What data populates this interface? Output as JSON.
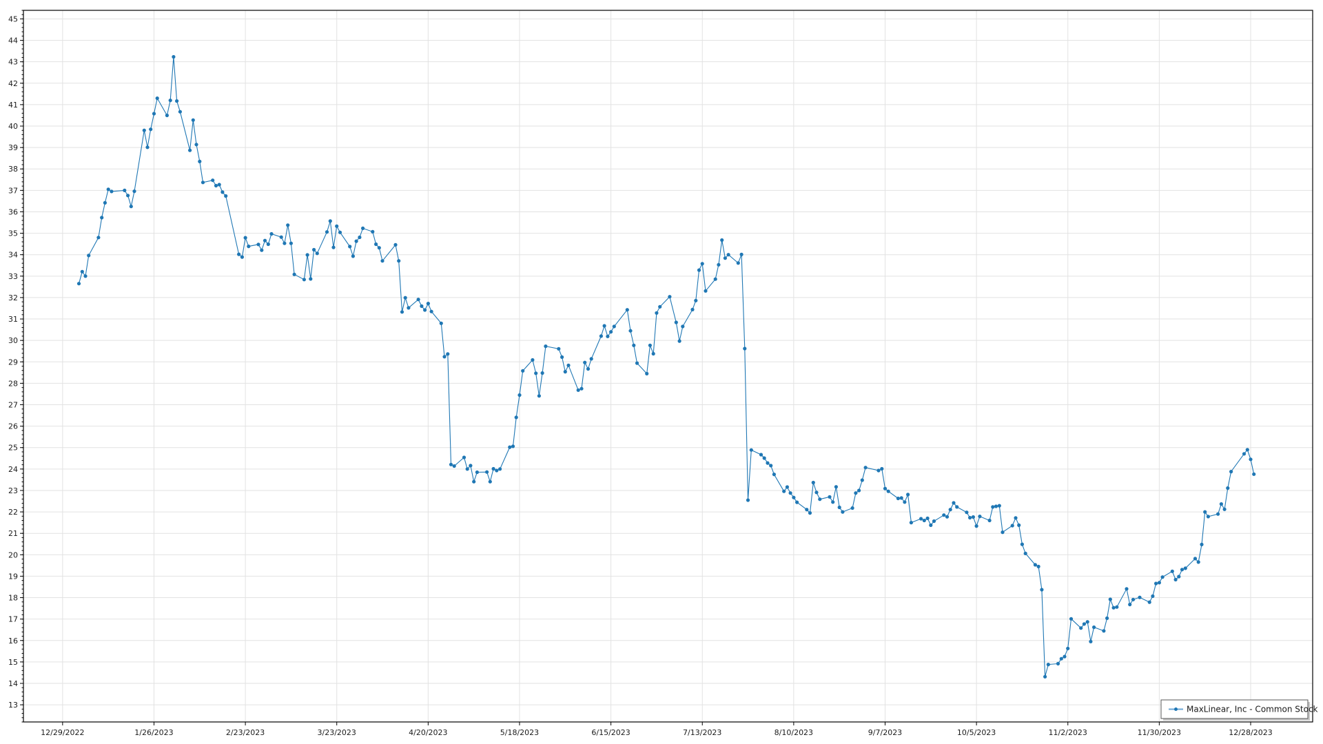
{
  "chart_data": {
    "type": "line",
    "title": "",
    "xlabel": "",
    "ylabel": "",
    "xlim": [
      "2022-12-17",
      "2024-01-16"
    ],
    "ylim": [
      12.2,
      45.4
    ],
    "grid": true,
    "legend_position": "bottom-right",
    "x_tick_labels": [
      "12/29/2022",
      "1/26/2023",
      "2/23/2023",
      "3/23/2023",
      "4/20/2023",
      "5/18/2023",
      "6/15/2023",
      "7/13/2023",
      "8/10/2023",
      "9/7/2023",
      "10/5/2023",
      "11/2/2023",
      "11/30/2023",
      "12/28/2023"
    ],
    "x_tick_dates": [
      "2022-12-29",
      "2023-01-26",
      "2023-02-23",
      "2023-03-23",
      "2023-04-20",
      "2023-05-18",
      "2023-06-15",
      "2023-07-13",
      "2023-08-10",
      "2023-09-07",
      "2023-10-05",
      "2023-11-02",
      "2023-11-30",
      "2023-12-28"
    ],
    "y_tick_labels": [
      "13",
      "14",
      "15",
      "16",
      "17",
      "18",
      "19",
      "20",
      "21",
      "22",
      "23",
      "24",
      "25",
      "26",
      "27",
      "28",
      "29",
      "30",
      "31",
      "32",
      "33",
      "34",
      "35",
      "36",
      "37",
      "38",
      "39",
      "40",
      "41",
      "42",
      "43",
      "44",
      "45"
    ],
    "series": [
      {
        "name": "MaxLinear, Inc - Common Stock",
        "color": "#1f77b4",
        "marker": "circle",
        "points": [
          [
            "2023-01-03",
            32.65
          ],
          [
            "2023-01-04",
            33.21
          ],
          [
            "2023-01-05",
            33.0
          ],
          [
            "2023-01-06",
            33.96
          ],
          [
            "2023-01-09",
            34.8
          ],
          [
            "2023-01-10",
            35.73
          ],
          [
            "2023-01-11",
            36.42
          ],
          [
            "2023-01-12",
            37.05
          ],
          [
            "2023-01-13",
            36.95
          ],
          [
            "2023-01-17",
            37.0
          ],
          [
            "2023-01-18",
            36.76
          ],
          [
            "2023-01-19",
            36.25
          ],
          [
            "2023-01-20",
            36.96
          ],
          [
            "2023-01-23",
            39.8
          ],
          [
            "2023-01-24",
            39.01
          ],
          [
            "2023-01-25",
            39.85
          ],
          [
            "2023-01-26",
            40.58
          ],
          [
            "2023-01-27",
            41.3
          ],
          [
            "2023-01-30",
            40.5
          ],
          [
            "2023-01-31",
            41.2
          ],
          [
            "2023-02-01",
            43.23
          ],
          [
            "2023-02-02",
            41.17
          ],
          [
            "2023-02-03",
            40.67
          ],
          [
            "2023-02-06",
            38.87
          ],
          [
            "2023-02-07",
            40.28
          ],
          [
            "2023-02-08",
            39.14
          ],
          [
            "2023-02-09",
            38.35
          ],
          [
            "2023-02-10",
            37.37
          ],
          [
            "2023-02-13",
            37.47
          ],
          [
            "2023-02-14",
            37.22
          ],
          [
            "2023-02-15",
            37.27
          ],
          [
            "2023-02-16",
            36.92
          ],
          [
            "2023-02-17",
            36.74
          ],
          [
            "2023-02-21",
            34.02
          ],
          [
            "2023-02-22",
            33.89
          ],
          [
            "2023-02-23",
            34.79
          ],
          [
            "2023-02-24",
            34.39
          ],
          [
            "2023-02-27",
            34.48
          ],
          [
            "2023-02-28",
            34.21
          ],
          [
            "2023-03-01",
            34.66
          ],
          [
            "2023-03-02",
            34.49
          ],
          [
            "2023-03-03",
            34.97
          ],
          [
            "2023-03-06",
            34.82
          ],
          [
            "2023-03-07",
            34.53
          ],
          [
            "2023-03-08",
            35.38
          ],
          [
            "2023-03-09",
            34.53
          ],
          [
            "2023-03-10",
            33.08
          ],
          [
            "2023-03-13",
            32.84
          ],
          [
            "2023-03-14",
            33.99
          ],
          [
            "2023-03-15",
            32.87
          ],
          [
            "2023-03-16",
            34.23
          ],
          [
            "2023-03-17",
            34.06
          ],
          [
            "2023-03-20",
            35.06
          ],
          [
            "2023-03-21",
            35.57
          ],
          [
            "2023-03-22",
            34.34
          ],
          [
            "2023-03-23",
            35.33
          ],
          [
            "2023-03-24",
            35.04
          ],
          [
            "2023-03-27",
            34.38
          ],
          [
            "2023-03-28",
            33.93
          ],
          [
            "2023-03-29",
            34.63
          ],
          [
            "2023-03-30",
            34.81
          ],
          [
            "2023-03-31",
            35.23
          ],
          [
            "2023-04-03",
            35.07
          ],
          [
            "2023-04-04",
            34.49
          ],
          [
            "2023-04-05",
            34.32
          ],
          [
            "2023-04-06",
            33.71
          ],
          [
            "2023-04-10",
            34.46
          ],
          [
            "2023-04-11",
            33.71
          ],
          [
            "2023-04-12",
            31.33
          ],
          [
            "2023-04-13",
            31.99
          ],
          [
            "2023-04-14",
            31.52
          ],
          [
            "2023-04-17",
            31.91
          ],
          [
            "2023-04-18",
            31.6
          ],
          [
            "2023-04-19",
            31.42
          ],
          [
            "2023-04-20",
            31.72
          ],
          [
            "2023-04-21",
            31.35
          ],
          [
            "2023-04-24",
            30.8
          ],
          [
            "2023-04-25",
            29.24
          ],
          [
            "2023-04-26",
            29.37
          ],
          [
            "2023-04-27",
            24.21
          ],
          [
            "2023-04-28",
            24.14
          ],
          [
            "2023-05-01",
            24.54
          ],
          [
            "2023-05-02",
            24.0
          ],
          [
            "2023-05-03",
            24.16
          ],
          [
            "2023-05-04",
            23.41
          ],
          [
            "2023-05-05",
            23.85
          ],
          [
            "2023-05-08",
            23.86
          ],
          [
            "2023-05-09",
            23.41
          ],
          [
            "2023-05-10",
            24.01
          ],
          [
            "2023-05-11",
            23.93
          ],
          [
            "2023-05-12",
            24.0
          ],
          [
            "2023-05-15",
            25.02
          ],
          [
            "2023-05-16",
            25.06
          ],
          [
            "2023-05-17",
            26.41
          ],
          [
            "2023-05-18",
            27.45
          ],
          [
            "2023-05-19",
            28.58
          ],
          [
            "2023-05-22",
            29.09
          ],
          [
            "2023-05-23",
            28.47
          ],
          [
            "2023-05-24",
            27.41
          ],
          [
            "2023-05-25",
            28.48
          ],
          [
            "2023-05-26",
            29.73
          ],
          [
            "2023-05-30",
            29.61
          ],
          [
            "2023-05-31",
            29.22
          ],
          [
            "2023-06-01",
            28.54
          ],
          [
            "2023-06-02",
            28.84
          ],
          [
            "2023-06-05",
            27.68
          ],
          [
            "2023-06-06",
            27.75
          ],
          [
            "2023-06-07",
            28.97
          ],
          [
            "2023-06-08",
            28.67
          ],
          [
            "2023-06-09",
            29.14
          ],
          [
            "2023-06-12",
            30.2
          ],
          [
            "2023-06-13",
            30.68
          ],
          [
            "2023-06-14",
            30.19
          ],
          [
            "2023-06-15",
            30.4
          ],
          [
            "2023-06-16",
            30.65
          ],
          [
            "2023-06-20",
            31.43
          ],
          [
            "2023-06-21",
            30.45
          ],
          [
            "2023-06-22",
            29.77
          ],
          [
            "2023-06-23",
            28.94
          ],
          [
            "2023-06-26",
            28.45
          ],
          [
            "2023-06-27",
            29.77
          ],
          [
            "2023-06-28",
            29.38
          ],
          [
            "2023-06-29",
            31.28
          ],
          [
            "2023-06-30",
            31.57
          ],
          [
            "2023-07-03",
            32.04
          ],
          [
            "2023-07-05",
            30.84
          ],
          [
            "2023-07-06",
            29.97
          ],
          [
            "2023-07-07",
            30.65
          ],
          [
            "2023-07-10",
            31.44
          ],
          [
            "2023-07-11",
            31.86
          ],
          [
            "2023-07-12",
            33.28
          ],
          [
            "2023-07-13",
            33.58
          ],
          [
            "2023-07-14",
            32.31
          ],
          [
            "2023-07-17",
            32.86
          ],
          [
            "2023-07-18",
            33.53
          ],
          [
            "2023-07-19",
            34.68
          ],
          [
            "2023-07-20",
            33.84
          ],
          [
            "2023-07-21",
            34.0
          ],
          [
            "2023-07-24",
            33.61
          ],
          [
            "2023-07-25",
            34.01
          ],
          [
            "2023-07-26",
            29.62
          ],
          [
            "2023-07-27",
            22.55
          ],
          [
            "2023-07-28",
            24.89
          ],
          [
            "2023-07-31",
            24.67
          ],
          [
            "2023-08-01",
            24.51
          ],
          [
            "2023-08-02",
            24.28
          ],
          [
            "2023-08-03",
            24.16
          ],
          [
            "2023-08-04",
            23.75
          ],
          [
            "2023-08-07",
            22.96
          ],
          [
            "2023-08-08",
            23.16
          ],
          [
            "2023-08-09",
            22.88
          ],
          [
            "2023-08-10",
            22.67
          ],
          [
            "2023-08-11",
            22.45
          ],
          [
            "2023-08-14",
            22.11
          ],
          [
            "2023-08-15",
            21.95
          ],
          [
            "2023-08-16",
            23.37
          ],
          [
            "2023-08-17",
            22.91
          ],
          [
            "2023-08-18",
            22.59
          ],
          [
            "2023-08-21",
            22.7
          ],
          [
            "2023-08-22",
            22.46
          ],
          [
            "2023-08-23",
            23.17
          ],
          [
            "2023-08-24",
            22.21
          ],
          [
            "2023-08-25",
            22.0
          ],
          [
            "2023-08-28",
            22.18
          ],
          [
            "2023-08-29",
            22.88
          ],
          [
            "2023-08-30",
            23.0
          ],
          [
            "2023-08-31",
            23.48
          ],
          [
            "2023-09-01",
            24.07
          ],
          [
            "2023-09-05",
            23.93
          ],
          [
            "2023-09-06",
            24.01
          ],
          [
            "2023-09-07",
            23.09
          ],
          [
            "2023-09-08",
            22.96
          ],
          [
            "2023-09-11",
            22.63
          ],
          [
            "2023-09-12",
            22.65
          ],
          [
            "2023-09-13",
            22.46
          ],
          [
            "2023-09-14",
            22.81
          ],
          [
            "2023-09-15",
            21.5
          ],
          [
            "2023-09-18",
            21.68
          ],
          [
            "2023-09-19",
            21.6
          ],
          [
            "2023-09-20",
            21.7
          ],
          [
            "2023-09-21",
            21.38
          ],
          [
            "2023-09-22",
            21.57
          ],
          [
            "2023-09-25",
            21.85
          ],
          [
            "2023-09-26",
            21.77
          ],
          [
            "2023-09-27",
            22.11
          ],
          [
            "2023-09-28",
            22.42
          ],
          [
            "2023-09-29",
            22.23
          ],
          [
            "2023-10-02",
            21.98
          ],
          [
            "2023-10-03",
            21.73
          ],
          [
            "2023-10-04",
            21.76
          ],
          [
            "2023-10-05",
            21.34
          ],
          [
            "2023-10-06",
            21.79
          ],
          [
            "2023-10-09",
            21.6
          ],
          [
            "2023-10-10",
            22.23
          ],
          [
            "2023-10-11",
            22.26
          ],
          [
            "2023-10-12",
            22.29
          ],
          [
            "2023-10-13",
            21.05
          ],
          [
            "2023-10-16",
            21.36
          ],
          [
            "2023-10-17",
            21.72
          ],
          [
            "2023-10-18",
            21.38
          ],
          [
            "2023-10-19",
            20.49
          ],
          [
            "2023-10-20",
            20.06
          ],
          [
            "2023-10-23",
            19.53
          ],
          [
            "2023-10-24",
            19.45
          ],
          [
            "2023-10-25",
            18.37
          ],
          [
            "2023-10-26",
            14.31
          ],
          [
            "2023-10-27",
            14.88
          ],
          [
            "2023-10-30",
            14.92
          ],
          [
            "2023-10-31",
            15.15
          ],
          [
            "2023-11-01",
            15.25
          ],
          [
            "2023-11-02",
            15.63
          ],
          [
            "2023-11-03",
            17.01
          ],
          [
            "2023-11-06",
            16.58
          ],
          [
            "2023-11-07",
            16.77
          ],
          [
            "2023-11-08",
            16.87
          ],
          [
            "2023-11-09",
            15.95
          ],
          [
            "2023-11-10",
            16.62
          ],
          [
            "2023-11-13",
            16.45
          ],
          [
            "2023-11-14",
            17.04
          ],
          [
            "2023-11-15",
            17.92
          ],
          [
            "2023-11-16",
            17.53
          ],
          [
            "2023-11-17",
            17.56
          ],
          [
            "2023-11-20",
            18.41
          ],
          [
            "2023-11-21",
            17.68
          ],
          [
            "2023-11-22",
            17.91
          ],
          [
            "2023-11-24",
            18.01
          ],
          [
            "2023-11-27",
            17.79
          ],
          [
            "2023-11-28",
            18.07
          ],
          [
            "2023-11-29",
            18.66
          ],
          [
            "2023-11-30",
            18.7
          ],
          [
            "2023-12-01",
            18.96
          ],
          [
            "2023-12-04",
            19.23
          ],
          [
            "2023-12-05",
            18.84
          ],
          [
            "2023-12-06",
            18.98
          ],
          [
            "2023-12-07",
            19.31
          ],
          [
            "2023-12-08",
            19.37
          ],
          [
            "2023-12-11",
            19.82
          ],
          [
            "2023-12-12",
            19.66
          ],
          [
            "2023-12-13",
            20.48
          ],
          [
            "2023-12-14",
            22.0
          ],
          [
            "2023-12-15",
            21.78
          ],
          [
            "2023-12-18",
            21.9
          ],
          [
            "2023-12-19",
            22.37
          ],
          [
            "2023-12-20",
            22.12
          ],
          [
            "2023-12-21",
            23.11
          ],
          [
            "2023-12-22",
            23.88
          ],
          [
            "2023-12-26",
            24.71
          ],
          [
            "2023-12-27",
            24.9
          ],
          [
            "2023-12-28",
            24.45
          ],
          [
            "2023-12-29",
            23.76
          ]
        ]
      }
    ]
  }
}
